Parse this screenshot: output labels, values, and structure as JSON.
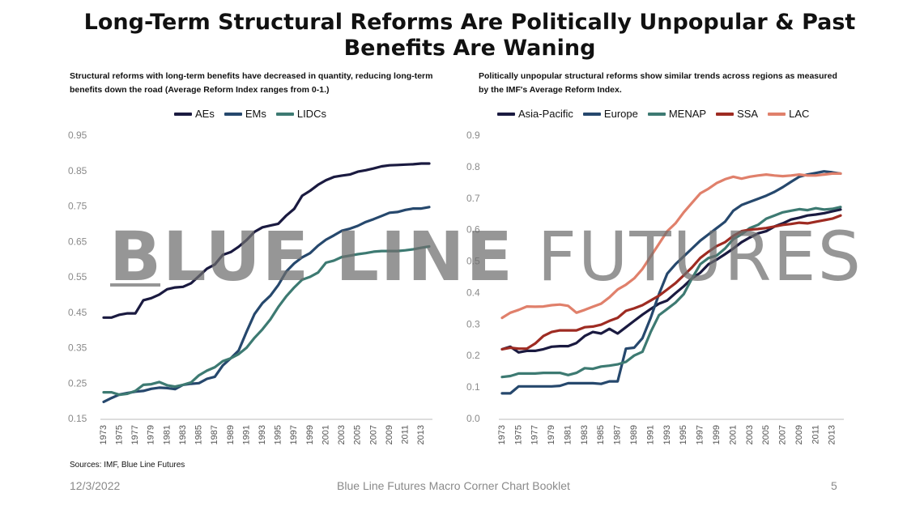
{
  "title": "Long-Term Structural Reforms Are Politically Unpopular & Past Benefits Are Waning",
  "watermark": {
    "part1": "BLUE LINE",
    "part2": "FUTURES"
  },
  "left_subtitle": "Structural reforms with long-term benefits have decreased in quantity, reducing long-term benefits down the road (Average Reform Index ranges from 0-1.)",
  "right_subtitle": "Politically unpopular structural reforms show similar trends across regions as measured by the IMF's Average Reform Index.",
  "source": "Sources: IMF, Blue Line Futures",
  "footer": {
    "date": "12/3/2022",
    "center": "Blue Line Futures Macro Corner Chart Booklet",
    "page": "5"
  },
  "chart_data": [
    {
      "type": "line",
      "title": "",
      "xlabel": "",
      "ylabel": "",
      "x": [
        1973,
        1974,
        1975,
        1976,
        1977,
        1978,
        1979,
        1980,
        1981,
        1982,
        1983,
        1984,
        1985,
        1986,
        1987,
        1988,
        1989,
        1990,
        1991,
        1992,
        1993,
        1994,
        1995,
        1996,
        1997,
        1998,
        1999,
        2000,
        2001,
        2002,
        2003,
        2004,
        2005,
        2006,
        2007,
        2008,
        2009,
        2010,
        2011,
        2012,
        2013,
        2014
      ],
      "xticks": [
        "1973",
        "1975",
        "1977",
        "1979",
        "1981",
        "1983",
        "1985",
        "1987",
        "1989",
        "1991",
        "1993",
        "1995",
        "1997",
        "1999",
        "2001",
        "2003",
        "2005",
        "2007",
        "2009",
        "2011",
        "2013"
      ],
      "ylim": [
        0.15,
        0.95
      ],
      "yticks": [
        "0.95",
        "0.85",
        "0.75",
        "0.65",
        "0.55",
        "0.45",
        "0.35",
        "0.25",
        "0.15"
      ],
      "grid": false,
      "legend_position": "top",
      "series": [
        {
          "name": "AEs",
          "color": "#1a1a40",
          "values": [
            0.435,
            0.435,
            0.443,
            0.447,
            0.447,
            0.484,
            0.49,
            0.5,
            0.515,
            0.52,
            0.522,
            0.532,
            0.552,
            0.573,
            0.585,
            0.612,
            0.62,
            0.635,
            0.654,
            0.677,
            0.69,
            0.695,
            0.7,
            0.723,
            0.742,
            0.779,
            0.793,
            0.81,
            0.823,
            0.832,
            0.836,
            0.839,
            0.847,
            0.851,
            0.856,
            0.862,
            0.865,
            0.866,
            0.867,
            0.868,
            0.87,
            0.87
          ]
        },
        {
          "name": "EMs",
          "color": "#26486d",
          "values": [
            0.197,
            0.208,
            0.218,
            0.222,
            0.226,
            0.228,
            0.234,
            0.237,
            0.236,
            0.233,
            0.245,
            0.248,
            0.25,
            0.262,
            0.268,
            0.3,
            0.32,
            0.342,
            0.395,
            0.445,
            0.476,
            0.497,
            0.527,
            0.565,
            0.588,
            0.605,
            0.617,
            0.638,
            0.655,
            0.667,
            0.68,
            0.686,
            0.694,
            0.705,
            0.713,
            0.722,
            0.731,
            0.733,
            0.739,
            0.743,
            0.743,
            0.747
          ]
        },
        {
          "name": "LIDCs",
          "color": "#3d7a72",
          "values": [
            0.224,
            0.224,
            0.217,
            0.22,
            0.228,
            0.245,
            0.247,
            0.253,
            0.244,
            0.24,
            0.245,
            0.252,
            0.272,
            0.285,
            0.295,
            0.312,
            0.32,
            0.332,
            0.35,
            0.378,
            0.402,
            0.43,
            0.465,
            0.495,
            0.52,
            0.542,
            0.55,
            0.562,
            0.59,
            0.596,
            0.606,
            0.61,
            0.614,
            0.617,
            0.621,
            0.623,
            0.623,
            0.623,
            0.625,
            0.628,
            0.632,
            0.636
          ]
        }
      ]
    },
    {
      "type": "line",
      "title": "",
      "xlabel": "",
      "ylabel": "",
      "x": [
        1973,
        1974,
        1975,
        1976,
        1977,
        1978,
        1979,
        1980,
        1981,
        1982,
        1983,
        1984,
        1985,
        1986,
        1987,
        1988,
        1989,
        1990,
        1991,
        1992,
        1993,
        1994,
        1995,
        1996,
        1997,
        1998,
        1999,
        2000,
        2001,
        2002,
        2003,
        2004,
        2005,
        2006,
        2007,
        2008,
        2009,
        2010,
        2011,
        2012,
        2013,
        2014
      ],
      "xticks": [
        "1973",
        "1975",
        "1977",
        "1979",
        "1981",
        "1983",
        "1985",
        "1987",
        "1989",
        "1991",
        "1993",
        "1995",
        "1997",
        "1999",
        "2001",
        "2003",
        "2005",
        "2007",
        "2009",
        "2011",
        "2013"
      ],
      "ylim": [
        0.0,
        0.9
      ],
      "yticks": [
        "0.9",
        "0.8",
        "0.7",
        "0.6",
        "0.5",
        "0.4",
        "0.3",
        "0.2",
        "0.1",
        "0.0"
      ],
      "grid": false,
      "legend_position": "top",
      "series": [
        {
          "name": "Asia-Pacific",
          "color": "#1a1a40",
          "values": [
            0.22,
            0.228,
            0.21,
            0.215,
            0.215,
            0.22,
            0.228,
            0.23,
            0.23,
            0.24,
            0.262,
            0.275,
            0.27,
            0.285,
            0.27,
            0.29,
            0.31,
            0.33,
            0.348,
            0.365,
            0.375,
            0.398,
            0.42,
            0.445,
            0.463,
            0.49,
            0.505,
            0.522,
            0.54,
            0.56,
            0.575,
            0.588,
            0.595,
            0.61,
            0.62,
            0.632,
            0.638,
            0.645,
            0.648,
            0.652,
            0.658,
            0.664
          ]
        },
        {
          "name": "Europe",
          "color": "#26486d",
          "values": [
            0.08,
            0.08,
            0.102,
            0.102,
            0.102,
            0.102,
            0.102,
            0.104,
            0.112,
            0.112,
            0.112,
            0.112,
            0.11,
            0.118,
            0.118,
            0.222,
            0.225,
            0.255,
            0.32,
            0.395,
            0.46,
            0.49,
            0.515,
            0.54,
            0.565,
            0.585,
            0.605,
            0.625,
            0.66,
            0.678,
            0.688,
            0.698,
            0.708,
            0.72,
            0.735,
            0.752,
            0.768,
            0.775,
            0.78,
            0.785,
            0.782,
            0.778
          ]
        },
        {
          "name": "MENAP",
          "color": "#3d7a72",
          "values": [
            0.132,
            0.135,
            0.143,
            0.143,
            0.143,
            0.145,
            0.145,
            0.145,
            0.138,
            0.145,
            0.16,
            0.158,
            0.165,
            0.168,
            0.172,
            0.18,
            0.2,
            0.212,
            0.275,
            0.328,
            0.348,
            0.368,
            0.395,
            0.445,
            0.49,
            0.51,
            0.518,
            0.54,
            0.57,
            0.585,
            0.605,
            0.615,
            0.635,
            0.645,
            0.655,
            0.66,
            0.665,
            0.662,
            0.668,
            0.664,
            0.666,
            0.672
          ]
        },
        {
          "name": "SSA",
          "color": "#9e2b22",
          "values": [
            0.22,
            0.225,
            0.222,
            0.222,
            0.238,
            0.262,
            0.275,
            0.28,
            0.28,
            0.28,
            0.29,
            0.292,
            0.298,
            0.31,
            0.32,
            0.342,
            0.35,
            0.36,
            0.375,
            0.39,
            0.41,
            0.43,
            0.455,
            0.48,
            0.51,
            0.53,
            0.548,
            0.56,
            0.58,
            0.595,
            0.6,
            0.602,
            0.605,
            0.61,
            0.615,
            0.618,
            0.622,
            0.62,
            0.625,
            0.63,
            0.635,
            0.645
          ]
        },
        {
          "name": "LAC",
          "color": "#e0806b",
          "values": [
            0.32,
            0.336,
            0.345,
            0.356,
            0.355,
            0.356,
            0.36,
            0.362,
            0.358,
            0.336,
            0.345,
            0.355,
            0.365,
            0.385,
            0.41,
            0.425,
            0.445,
            0.475,
            0.515,
            0.555,
            0.595,
            0.62,
            0.655,
            0.685,
            0.715,
            0.73,
            0.748,
            0.76,
            0.768,
            0.762,
            0.768,
            0.772,
            0.775,
            0.772,
            0.77,
            0.772,
            0.775,
            0.772,
            0.772,
            0.775,
            0.778,
            0.778
          ]
        }
      ]
    }
  ]
}
